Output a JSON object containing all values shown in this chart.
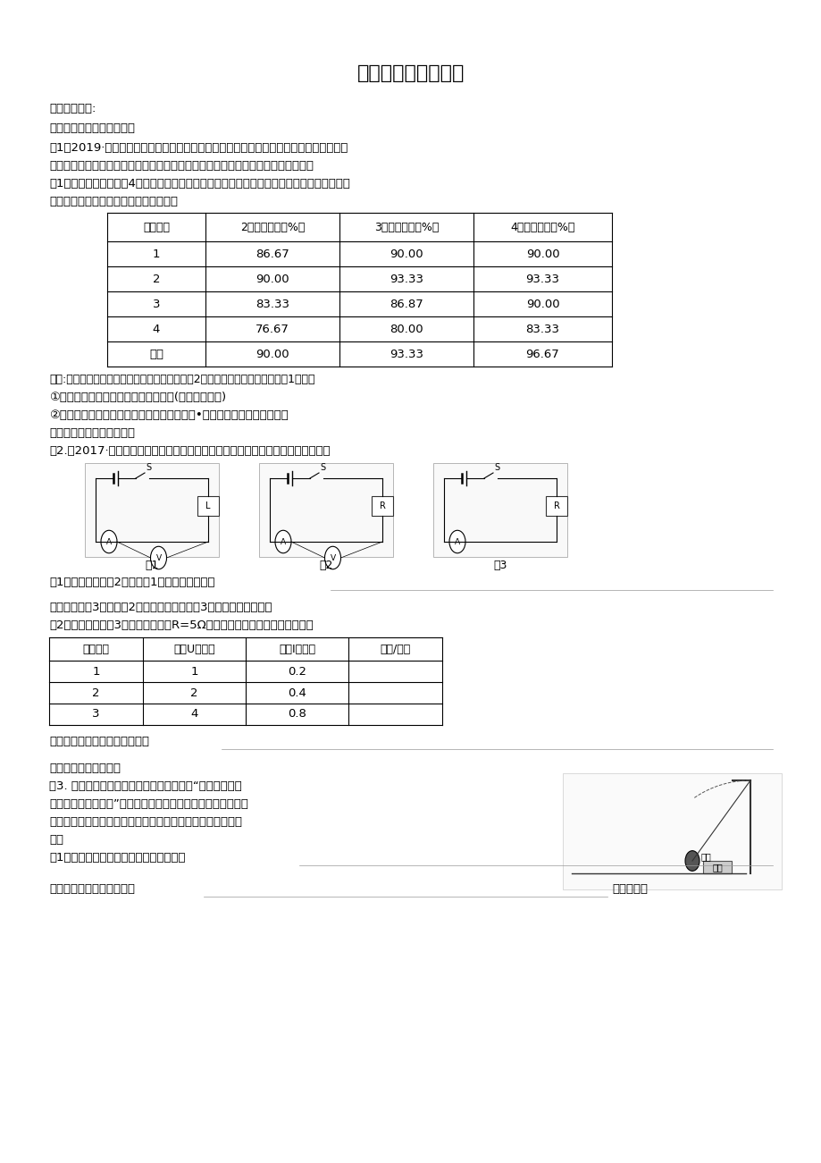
{
  "title": "科学探究题解题技巧",
  "bg_color": "#ffffff",
  "text_color": "#000000",
  "font_size_title": 16,
  "font_size_body": 9.5,
  "table1_headers": [
    "样品编号",
    "2龄蚕成活率（%）",
    "3龄蚕成活率（%）",
    "4龄蚕成活率（%）"
  ],
  "table1_rows": [
    [
      "1",
      "86.67",
      "90.00",
      "90.00"
    ],
    [
      "2",
      "90.00",
      "93.33",
      "93.33"
    ],
    [
      "3",
      "83.33",
      "86.87",
      "90.00"
    ],
    [
      "4",
      "76.67",
      "80.00",
      "83.33"
    ],
    [
      "清水",
      "90.00",
      "93.33",
      "96.67"
    ]
  ],
  "table2_headers": [
    "实验次数",
    "电压U（伏）",
    "电流I（安）",
    "电压/电流"
  ],
  "table2_rows": [
    [
      "1",
      "1",
      "0.2",
      ""
    ],
    [
      "2",
      "2",
      "0.4",
      ""
    ],
    [
      "3",
      "4",
      "0.8",
      ""
    ]
  ]
}
